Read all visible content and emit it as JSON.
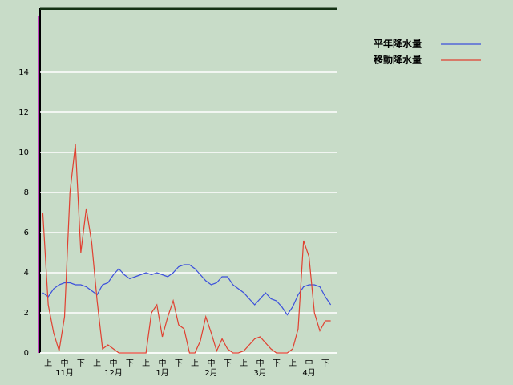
{
  "chart_data": {
    "type": "line",
    "categories": [
      null,
      "上",
      null,
      null,
      "中",
      null,
      null,
      "下",
      null,
      null,
      "上",
      null,
      null,
      "中",
      null,
      null,
      "下",
      null,
      null,
      "上",
      null,
      null,
      "中",
      null,
      null,
      "下",
      null,
      null,
      "上",
      null,
      null,
      "中",
      null,
      null,
      "下",
      null,
      null,
      "上",
      null,
      null,
      "中",
      null,
      null,
      "下",
      null,
      null,
      "上",
      null,
      null,
      "中",
      null,
      null,
      "下",
      null
    ],
    "groups": [
      "11月",
      "12月",
      "1月",
      "2月",
      "3月",
      "4月"
    ],
    "series": [
      {
        "name": "平年降水量",
        "color": "#3c50dc",
        "values": [
          3.0,
          2.8,
          3.2,
          3.4,
          3.5,
          3.5,
          3.4,
          3.4,
          3.3,
          3.1,
          2.9,
          3.4,
          3.5,
          3.9,
          4.2,
          3.9,
          3.7,
          3.8,
          3.9,
          4.0,
          3.9,
          4.0,
          3.9,
          3.8,
          4.0,
          4.3,
          4.4,
          4.4,
          4.2,
          3.9,
          3.6,
          3.4,
          3.5,
          3.8,
          3.8,
          3.4,
          3.2,
          3.0,
          2.7,
          2.4,
          2.7,
          3.0,
          2.7,
          2.6,
          2.3,
          1.9,
          2.3,
          2.9,
          3.3,
          3.4,
          3.4,
          3.3,
          2.8,
          2.4
        ]
      },
      {
        "name": "移動降水量",
        "color": "#e04030",
        "values": [
          7.0,
          2.4,
          1.0,
          0.1,
          1.8,
          8.0,
          10.4,
          5.0,
          7.2,
          5.5,
          2.6,
          0.2,
          0.4,
          0.2,
          0,
          0,
          0,
          0,
          0,
          0,
          2.0,
          2.4,
          0.8,
          1.8,
          2.6,
          1.4,
          1.2,
          0,
          0,
          0.6,
          1.8,
          1.0,
          0.1,
          0.7,
          0.2,
          0,
          0,
          0.1,
          0.4,
          0.7,
          0.8,
          0.5,
          0.2,
          0,
          0,
          0,
          0.2,
          1.2,
          5.6,
          4.8,
          2.0,
          1.1,
          1.6,
          1.6
        ]
      }
    ],
    "ylim": [
      0,
      17.2
    ],
    "yticks": [
      0,
      2,
      4,
      6,
      8,
      10,
      12,
      14
    ],
    "grid": true,
    "legend": "top-right"
  }
}
